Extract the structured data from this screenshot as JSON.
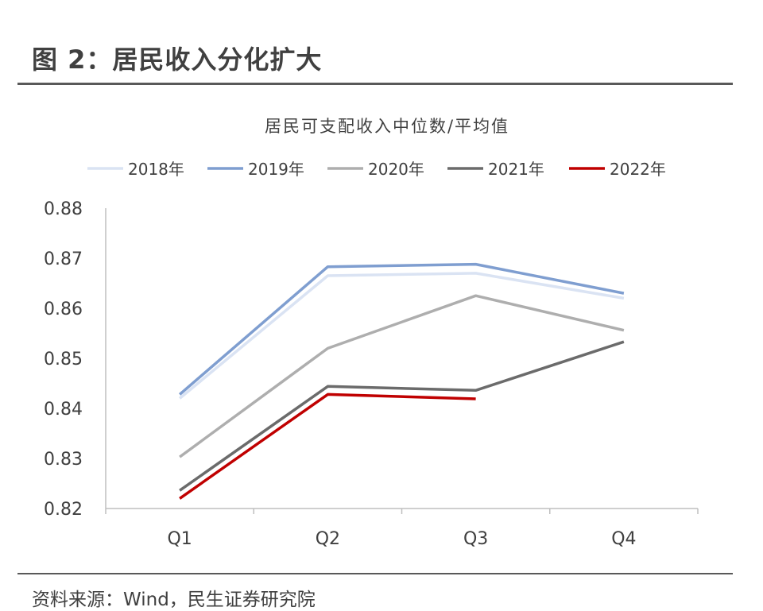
{
  "figure": {
    "title": "图 2：居民收入分化扩大",
    "source": "资料来源：Wind，民生证券研究院"
  },
  "chart_data": {
    "type": "line",
    "title": "居民可支配收入中位数/平均值",
    "xlabel": "",
    "ylabel": "",
    "categories": [
      "Q1",
      "Q2",
      "Q3",
      "Q4"
    ],
    "ylim": [
      0.82,
      0.88
    ],
    "yticks": [
      "0.82",
      "0.83",
      "0.84",
      "0.85",
      "0.86",
      "0.87",
      "0.88"
    ],
    "grid": false,
    "legend_position": "top",
    "series": [
      {
        "name": "2018年",
        "color": "#dae3f3",
        "values": [
          0.842,
          0.8665,
          0.867,
          0.862
        ]
      },
      {
        "name": "2019年",
        "color": "#7f9ed0",
        "values": [
          0.8428,
          0.8683,
          0.8688,
          0.863
        ]
      },
      {
        "name": "2020年",
        "color": "#aeaeae",
        "values": [
          0.8303,
          0.852,
          0.8625,
          0.8556
        ]
      },
      {
        "name": "2021年",
        "color": "#6b6b6b",
        "values": [
          0.8236,
          0.8444,
          0.8436,
          0.8533
        ]
      },
      {
        "name": "2022年",
        "color": "#c00000",
        "values": [
          0.822,
          0.8428,
          0.8419,
          null
        ]
      }
    ]
  }
}
